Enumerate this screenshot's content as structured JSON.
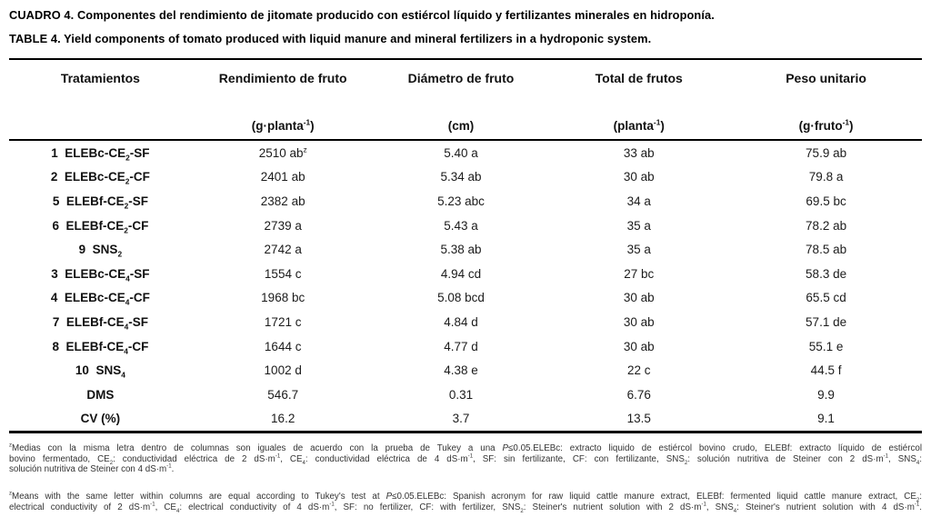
{
  "captions": {
    "es": "CUADRO 4. Componentes del rendimiento de jitomate producido con estiércol líquido y fertilizantes minerales en hidroponía.",
    "en": "TABLE 4. Yield components of tomato produced with liquid manure and mineral fertilizers in a hydroponic system."
  },
  "table": {
    "columns": [
      "Tratamientos",
      "Rendimiento de fruto",
      "Diámetro de fruto",
      "Total de frutos",
      "Peso unitario"
    ],
    "units": [
      "",
      "(g·planta^-1^)",
      "(cm)",
      "(planta^-1^)",
      "(g·fruto^-1^)"
    ],
    "rows": [
      {
        "cells": [
          "1  ELEBc-CE~2~-SF",
          "2510 ab^z^",
          "5.40 a",
          "33 ab",
          "75.9 ab"
        ]
      },
      {
        "cells": [
          "2  ELEBc-CE~2~-CF",
          "2401 ab",
          "5.34 ab",
          "30 ab",
          "79.8 a"
        ]
      },
      {
        "cells": [
          "5  ELEBf-CE~2~-SF",
          "2382 ab",
          "5.23 abc",
          "34 a",
          "69.5 bc"
        ]
      },
      {
        "cells": [
          "6  ELEBf-CE~2~-CF",
          "2739 a",
          "5.43 a",
          "35 a",
          "78.2 ab"
        ]
      },
      {
        "cells": [
          "9  SNS~2~",
          "2742 a",
          "5.38 ab",
          "35 a",
          "78.5 ab"
        ]
      },
      {
        "cells": [
          "3  ELEBc-CE~4~-SF",
          "1554 c",
          "4.94 cd",
          "27 bc",
          "58.3 de"
        ]
      },
      {
        "cells": [
          "4  ELEBc-CE~4~-CF",
          "1968 bc",
          "5.08 bcd",
          "30 ab",
          "65.5 cd"
        ]
      },
      {
        "cells": [
          "7  ELEBf-CE~4~-SF",
          "1721 c",
          "4.84 d",
          "30 ab",
          "57.1 de"
        ]
      },
      {
        "cells": [
          "8  ELEBf-CE~4~-CF",
          "1644 c",
          "4.77 d",
          "30 ab",
          "55.1 e"
        ]
      },
      {
        "cells": [
          "10  SNS~4~",
          "1002 d",
          "4.38 e",
          "22 c",
          "44.5 f"
        ]
      },
      {
        "cells": [
          "DMS",
          "546.7",
          "0.31",
          "6.76",
          "9.9"
        ]
      },
      {
        "cells": [
          "CV (%)",
          "16.2",
          "3.7",
          "13.5",
          "9.1"
        ]
      }
    ]
  },
  "footnotes": {
    "es": [
      "^z^Medias con la misma letra dentro de columnas son iguales de acuerdo con la prueba de Tukey a una *P*≤0.05.ELEBc: extracto liquido de estiércol bovino crudo, ELEBf: extracto líquido de estiércol",
      "bovino fermentado, CE~2~: conductividad eléctrica de 2 dS·m^-1^, CE~4~: conductividad eléctrica de 4 dS·m^-1^, SF: sin fertilizante, CF: con fertilizante, SNS~2~: solución nutritiva de Steiner con 2 dS·m^-1^, SNS~4~:",
      "solución nutritiva de Steiner con 4 dS·m^-1^."
    ],
    "en": [
      "^z^Means with the same letter within columns are equal according to Tukey's test at *P*≤0.05.ELEBc: Spanish acronym for raw liquid cattle manure extract, ELEBf: fermented liquid cattle manure extract, CE~2~:",
      "electrical conductivity of 2 dS·m^-1^, CE~4~: electrical conductivity of 4 dS·m^-1^, SF: no fertilizer, CF: with fertilizer, SNS~2~: Steiner's nutrient solution with 2 dS·m^-1^, SNS~4~: Steiner's nutrient solution with 4 dS·m^-1^."
    ]
  }
}
